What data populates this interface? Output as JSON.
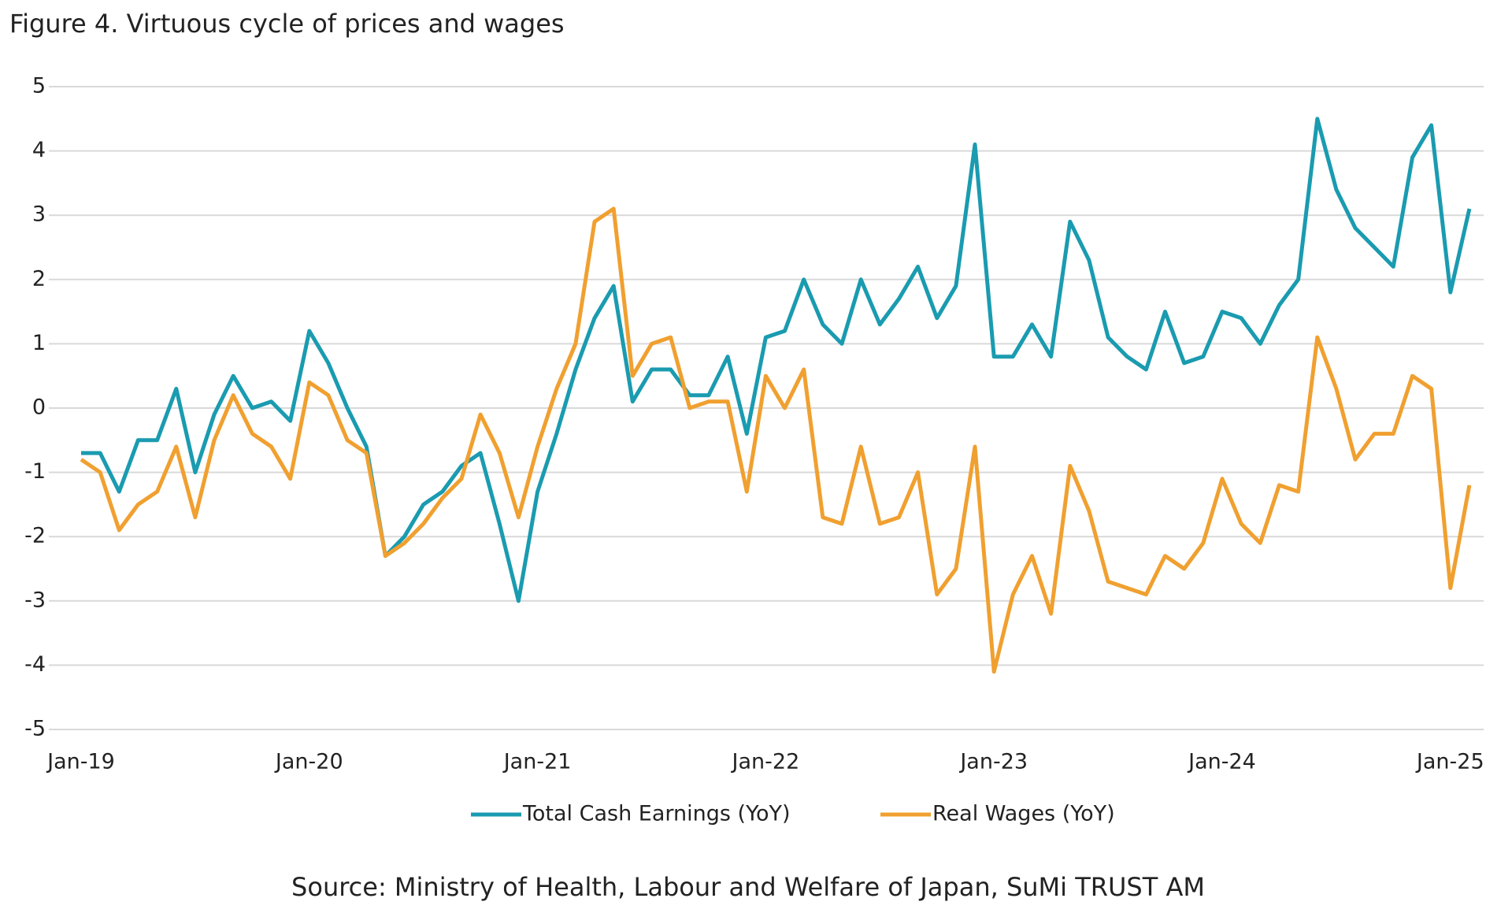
{
  "chart_data": {
    "type": "line",
    "title": "Figure 4. Virtuous cycle of prices and wages",
    "source": "Source: Ministry of Health, Labour and Welfare of Japan, SuMi TRUST AM",
    "categories": [
      "Jan-19",
      null,
      null,
      null,
      null,
      null,
      null,
      null,
      null,
      null,
      null,
      null,
      "Jan-20",
      null,
      null,
      null,
      null,
      null,
      null,
      null,
      null,
      null,
      null,
      null,
      "Jan-21",
      null,
      null,
      null,
      null,
      null,
      null,
      null,
      null,
      null,
      null,
      null,
      "Jan-22",
      null,
      null,
      null,
      null,
      null,
      null,
      null,
      null,
      null,
      null,
      null,
      "Jan-23",
      null,
      null,
      null,
      null,
      null,
      null,
      null,
      null,
      null,
      null,
      null,
      "Jan-24",
      null,
      null,
      null,
      null,
      null,
      null,
      null,
      null,
      null,
      null,
      null,
      "Jan-25",
      null
    ],
    "series": [
      {
        "name": "Total Cash Earnings (YoY)",
        "color": "#1a9bb0",
        "values": [
          -0.7,
          -0.7,
          -1.3,
          -0.5,
          -0.5,
          0.3,
          -1.0,
          -0.1,
          0.5,
          0.0,
          0.1,
          -0.2,
          1.2,
          0.7,
          0.0,
          -0.6,
          -2.3,
          -2.0,
          -1.5,
          -1.3,
          -0.9,
          -0.7,
          -1.8,
          -3.0,
          -1.3,
          -0.4,
          0.6,
          1.4,
          1.9,
          0.1,
          0.6,
          0.6,
          0.2,
          0.2,
          0.8,
          -0.4,
          1.1,
          1.2,
          2.0,
          1.3,
          1.0,
          2.0,
          1.3,
          1.7,
          2.2,
          1.4,
          1.9,
          4.1,
          0.8,
          0.8,
          1.3,
          0.8,
          2.9,
          2.3,
          1.1,
          0.8,
          0.6,
          1.5,
          0.7,
          0.8,
          1.5,
          1.4,
          1.0,
          1.6,
          2.0,
          4.5,
          3.4,
          2.8,
          2.5,
          2.2,
          3.9,
          4.4,
          1.8,
          3.1
        ]
      },
      {
        "name": "Real Wages (YoY)",
        "color": "#f0a030",
        "values": [
          -0.8,
          -1.0,
          -1.9,
          -1.5,
          -1.3,
          -0.6,
          -1.7,
          -0.5,
          0.2,
          -0.4,
          -0.6,
          -1.1,
          0.4,
          0.2,
          -0.5,
          -0.7,
          -2.3,
          -2.1,
          -1.8,
          -1.4,
          -1.1,
          -0.1,
          -0.7,
          -1.7,
          -0.6,
          0.3,
          1.0,
          2.9,
          3.1,
          0.5,
          1.0,
          1.1,
          0.0,
          0.1,
          0.1,
          -1.3,
          0.5,
          0.0,
          0.6,
          -1.7,
          -1.8,
          -0.6,
          -1.8,
          -1.7,
          -1.0,
          -2.9,
          -2.5,
          -0.6,
          -4.1,
          -2.9,
          -2.3,
          -3.2,
          -0.9,
          -1.6,
          -2.7,
          -2.8,
          -2.9,
          -2.3,
          -2.5,
          -2.1,
          -1.1,
          -1.8,
          -2.1,
          -1.2,
          -1.3,
          1.1,
          0.3,
          -0.8,
          -0.4,
          -0.4,
          0.5,
          0.3,
          -2.8,
          -1.2
        ]
      }
    ],
    "ylim": [
      -5,
      5
    ],
    "yticks": [
      -5,
      -4,
      -3,
      -2,
      -1,
      0,
      1,
      2,
      3,
      4,
      5
    ],
    "grid": true
  }
}
